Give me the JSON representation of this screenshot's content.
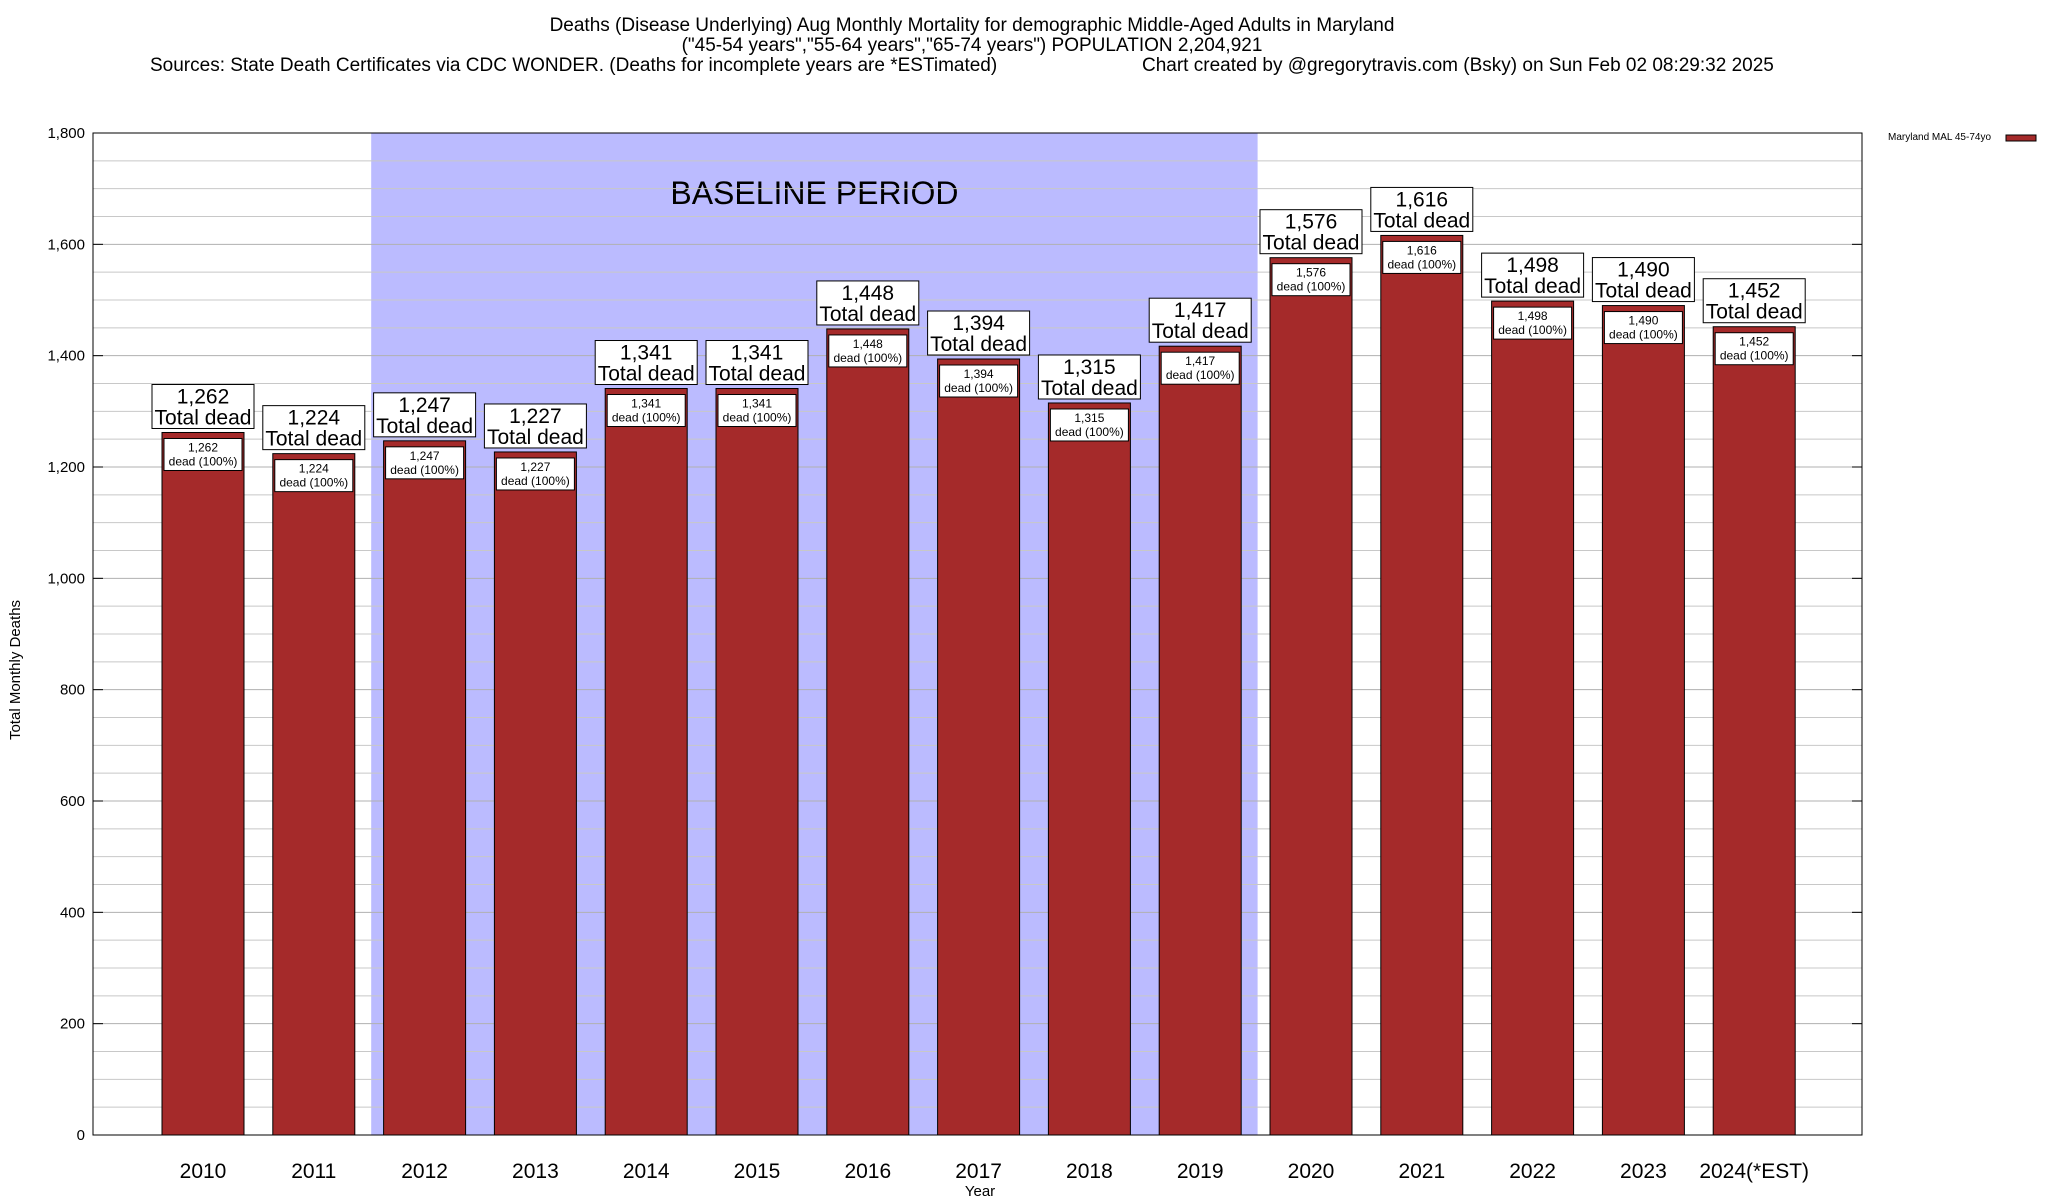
{
  "title": {
    "line1": "Deaths (Disease Underlying) Aug Monthly Mortality for demographic Middle-Aged Adults in Maryland",
    "line2": "(\"45-54 years\",\"55-64 years\",\"65-74 years\") POPULATION 2,204,921",
    "line3_left": "Sources: State Death Certificates via CDC WONDER. (Deaths for incomplete years are *ESTimated)",
    "line3_right": "Chart created by @gregorytravis.com (Bsky) on Sun Feb 02 08:29:32 2025"
  },
  "chart_data": {
    "type": "bar",
    "xlabel": "Year",
    "ylabel": "Total Monthly Deaths",
    "ylim": [
      0,
      1800
    ],
    "ytick_step": 200,
    "ytick_labels": [
      "0",
      "200",
      "400",
      "600",
      "800",
      "1,000",
      "1,200",
      "1,400",
      "1,600",
      "1,800"
    ],
    "grid": true,
    "categories": [
      "2010",
      "2011",
      "2012",
      "2013",
      "2014",
      "2015",
      "2016",
      "2017",
      "2018",
      "2019",
      "2020",
      "2021",
      "2022",
      "2023",
      "2024(*EST)"
    ],
    "series": [
      {
        "name": "Maryland MAL 45-74yo",
        "color": "#a52a2a",
        "values": [
          1262,
          1224,
          1247,
          1227,
          1341,
          1341,
          1448,
          1394,
          1315,
          1417,
          1576,
          1616,
          1498,
          1490,
          1452
        ]
      }
    ],
    "value_labels": [
      "1,262",
      "1,224",
      "1,247",
      "1,227",
      "1,341",
      "1,341",
      "1,448",
      "1,394",
      "1,315",
      "1,417",
      "1,576",
      "1,616",
      "1,498",
      "1,490",
      "1,452"
    ],
    "total_dead_text": "Total dead",
    "percent_text": "dead (100%)",
    "baseline": {
      "label": "BASELINE PERIOD",
      "start": "2012",
      "end": "2019",
      "color": "#bbbbff"
    },
    "legend": {
      "placement": "top-right"
    }
  }
}
